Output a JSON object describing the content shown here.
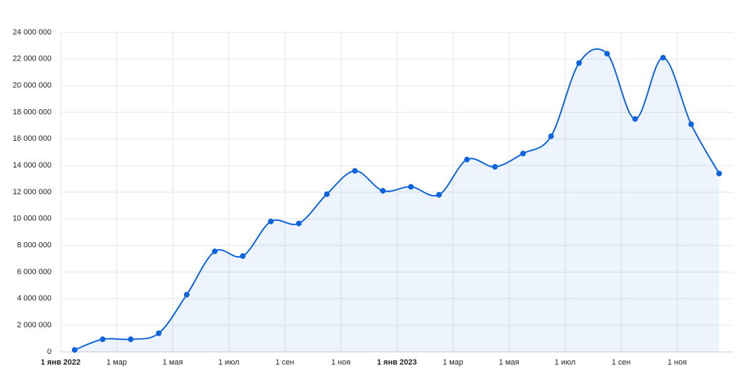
{
  "chart_data": {
    "type": "line",
    "x": [
      "2022-01",
      "2022-02",
      "2022-03",
      "2022-04",
      "2022-05",
      "2022-06",
      "2022-07",
      "2022-08",
      "2022-09",
      "2022-10",
      "2022-11",
      "2022-12",
      "2023-01",
      "2023-02",
      "2023-03",
      "2023-04",
      "2023-05",
      "2023-06",
      "2023-07",
      "2023-08",
      "2023-09",
      "2023-10",
      "2023-11",
      "2023-12"
    ],
    "series": [
      {
        "color": "#0b63de",
        "values": [
          150000,
          950000,
          950000,
          1400000,
          4300000,
          7550000,
          7200000,
          9800000,
          9650000,
          11850000,
          13600000,
          12100000,
          12400000,
          11800000,
          14450000,
          13900000,
          14900000,
          16200000,
          21700000,
          22400000,
          17500000,
          22100000,
          17100000,
          13400000
        ]
      }
    ],
    "xlim": [
      "2022-01-01",
      "2024-01-01"
    ],
    "xticks": [
      {
        "value": "2022-01-01",
        "label": "1 янв 2022"
      },
      {
        "value": "2022-03-01",
        "label": "1 мар"
      },
      {
        "value": "2022-05-01",
        "label": "1 мая"
      },
      {
        "value": "2022-07-01",
        "label": "1 июл"
      },
      {
        "value": "2022-09-01",
        "label": "1 сен"
      },
      {
        "value": "2022-11-01",
        "label": "1 ноя"
      },
      {
        "value": "2023-01-01",
        "label": "1 янв 2023"
      },
      {
        "value": "2023-03-01",
        "label": "1 мар"
      },
      {
        "value": "2023-05-01",
        "label": "1 мая"
      },
      {
        "value": "2023-07-01",
        "label": "1 июл"
      },
      {
        "value": "2023-09-01",
        "label": "1 сен"
      },
      {
        "value": "2023-11-01",
        "label": "1 ноя"
      }
    ],
    "ylim": [
      0,
      24000000
    ],
    "yticks": [
      0,
      {
        "value": 2000000,
        "label": "2 000 000"
      },
      {
        "value": 4000000,
        "label": "4 000 000"
      },
      {
        "value": 6000000,
        "label": "6 000 000"
      },
      {
        "value": 8000000,
        "label": "8 000 000"
      },
      {
        "value": 10000000,
        "label": "10 000 000"
      },
      {
        "value": 12000000,
        "label": "12 000 000"
      },
      {
        "value": 14000000,
        "label": "14 000 000"
      },
      {
        "value": 16000000,
        "label": "16 000 000"
      },
      {
        "value": 18000000,
        "label": "18 000 000"
      },
      {
        "value": 20000000,
        "label": "20 000 000"
      },
      {
        "value": 22000000,
        "label": "22 000 000"
      },
      {
        "value": 24000000,
        "label": "24 000 000"
      }
    ],
    "grid": true,
    "area": true
  }
}
